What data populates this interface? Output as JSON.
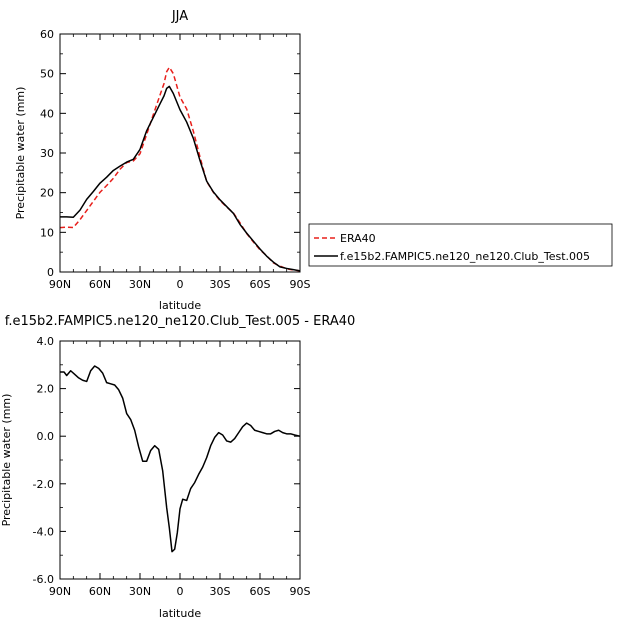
{
  "chart_data": [
    {
      "type": "line",
      "title": "JJA",
      "xlabel": "latitude",
      "ylabel": "Precipitable  water  (mm)",
      "x_ticks": [
        {
          "value": 90,
          "label": "90N"
        },
        {
          "value": 60,
          "label": "60N"
        },
        {
          "value": 30,
          "label": "30N"
        },
        {
          "value": 0,
          "label": "0"
        },
        {
          "value": -30,
          "label": "30S"
        },
        {
          "value": -60,
          "label": "60S"
        },
        {
          "value": -90,
          "label": "90S"
        }
      ],
      "y_ticks": [
        {
          "value": 0,
          "label": "0"
        },
        {
          "value": 10,
          "label": "10"
        },
        {
          "value": 20,
          "label": "20"
        },
        {
          "value": 30,
          "label": "30"
        },
        {
          "value": 40,
          "label": "40"
        },
        {
          "value": 50,
          "label": "50"
        },
        {
          "value": 60,
          "label": "60"
        }
      ],
      "xlim": [
        90,
        -90
      ],
      "ylim": [
        0,
        60
      ],
      "grid": false,
      "legend_position": "right",
      "series": [
        {
          "name": "ERA40",
          "color": "#e8201c",
          "dash": "dashed",
          "x": [
            90,
            85,
            80,
            75,
            70,
            65,
            60,
            55,
            50,
            45,
            40,
            35,
            30,
            25,
            20,
            15,
            12,
            10,
            8,
            5,
            0,
            -5,
            -10,
            -15,
            -20,
            -25,
            -30,
            -35,
            -40,
            -45,
            -50,
            -55,
            -60,
            -65,
            -70,
            -75,
            -80,
            -85,
            -90
          ],
          "values": [
            11.2,
            11.3,
            11.2,
            13.2,
            15.5,
            17.8,
            20.1,
            21.8,
            23.6,
            25.9,
            27.6,
            28.0,
            29.8,
            34.7,
            39.7,
            44.6,
            47.5,
            50.5,
            51.6,
            50.0,
            44.1,
            41.1,
            35.5,
            29.0,
            22.8,
            20.1,
            18.0,
            16.4,
            14.9,
            12.4,
            9.7,
            7.6,
            5.6,
            4.1,
            2.3,
            1.5,
            0.8,
            0.5,
            0.3
          ]
        },
        {
          "name": "f.e15b2.FAMPIC5.ne120_ne120.Club_Test.005",
          "color": "#000000",
          "dash": "solid",
          "x": [
            90,
            85,
            80,
            75,
            70,
            65,
            60,
            55,
            50,
            45,
            40,
            35,
            30,
            25,
            20,
            15,
            12,
            10,
            8,
            5,
            0,
            -5,
            -10,
            -15,
            -20,
            -25,
            -30,
            -35,
            -40,
            -45,
            -50,
            -55,
            -60,
            -65,
            -70,
            -75,
            -80,
            -85,
            -90
          ],
          "values": [
            13.9,
            13.9,
            13.8,
            15.6,
            18.3,
            20.3,
            22.4,
            23.9,
            25.6,
            26.7,
            27.7,
            28.4,
            30.9,
            35.6,
            39.0,
            42.4,
            44.4,
            46.3,
            46.8,
            45.0,
            40.9,
            37.8,
            33.7,
            28.1,
            22.9,
            20.2,
            18.2,
            16.5,
            14.8,
            12.0,
            9.8,
            7.8,
            5.8,
            4.0,
            2.5,
            1.3,
            0.9,
            0.6,
            0.3
          ]
        }
      ]
    },
    {
      "type": "line",
      "title": "f.e15b2.FAMPIC5.ne120_ne120.Club_Test.005  -  ERA40",
      "xlabel": "latitude",
      "ylabel": "Precipitable  water  (mm)",
      "x_ticks": [
        {
          "value": 90,
          "label": "90N"
        },
        {
          "value": 60,
          "label": "60N"
        },
        {
          "value": 30,
          "label": "30N"
        },
        {
          "value": 0,
          "label": "0"
        },
        {
          "value": -30,
          "label": "30S"
        },
        {
          "value": -60,
          "label": "60S"
        },
        {
          "value": -90,
          "label": "90S"
        }
      ],
      "y_ticks": [
        {
          "value": -6,
          "label": "-6.0"
        },
        {
          "value": -4,
          "label": "-4.0"
        },
        {
          "value": -2,
          "label": "-2.0"
        },
        {
          "value": 0,
          "label": "0.0"
        },
        {
          "value": 2,
          "label": "2.0"
        },
        {
          "value": 4,
          "label": "4.0"
        }
      ],
      "xlim": [
        90,
        -90
      ],
      "ylim": [
        -6,
        4
      ],
      "grid": false,
      "series": [
        {
          "color": "#000000",
          "dash": "solid",
          "x": [
            90,
            87,
            85,
            82,
            79,
            76,
            73,
            70,
            67,
            64,
            61,
            58,
            55,
            52,
            49,
            46,
            43,
            40,
            37,
            34,
            31,
            28,
            25,
            22,
            19,
            16,
            13,
            10,
            8,
            6,
            4,
            2,
            0,
            -2,
            -5,
            -8,
            -11,
            -14,
            -17,
            -20,
            -23,
            -26,
            -29,
            -32,
            -35,
            -38,
            -41,
            -44,
            -47,
            -50,
            -53,
            -56,
            -59,
            -62,
            -65,
            -68,
            -71,
            -74,
            -77,
            -80,
            -83,
            -86,
            -90
          ],
          "values": [
            2.7,
            2.7,
            2.55,
            2.75,
            2.6,
            2.45,
            2.35,
            2.3,
            2.75,
            2.95,
            2.85,
            2.65,
            2.25,
            2.2,
            2.15,
            1.95,
            1.6,
            0.95,
            0.7,
            0.25,
            -0.45,
            -1.05,
            -1.05,
            -0.6,
            -0.4,
            -0.55,
            -1.45,
            -3.0,
            -3.85,
            -4.85,
            -4.75,
            -4.05,
            -3.05,
            -2.65,
            -2.7,
            -2.2,
            -1.95,
            -1.6,
            -1.3,
            -0.9,
            -0.4,
            -0.05,
            0.15,
            0.05,
            -0.2,
            -0.25,
            -0.1,
            0.15,
            0.4,
            0.55,
            0.45,
            0.25,
            0.2,
            0.15,
            0.1,
            0.1,
            0.2,
            0.25,
            0.15,
            0.1,
            0.1,
            0.05,
            0.0
          ]
        }
      ]
    }
  ]
}
